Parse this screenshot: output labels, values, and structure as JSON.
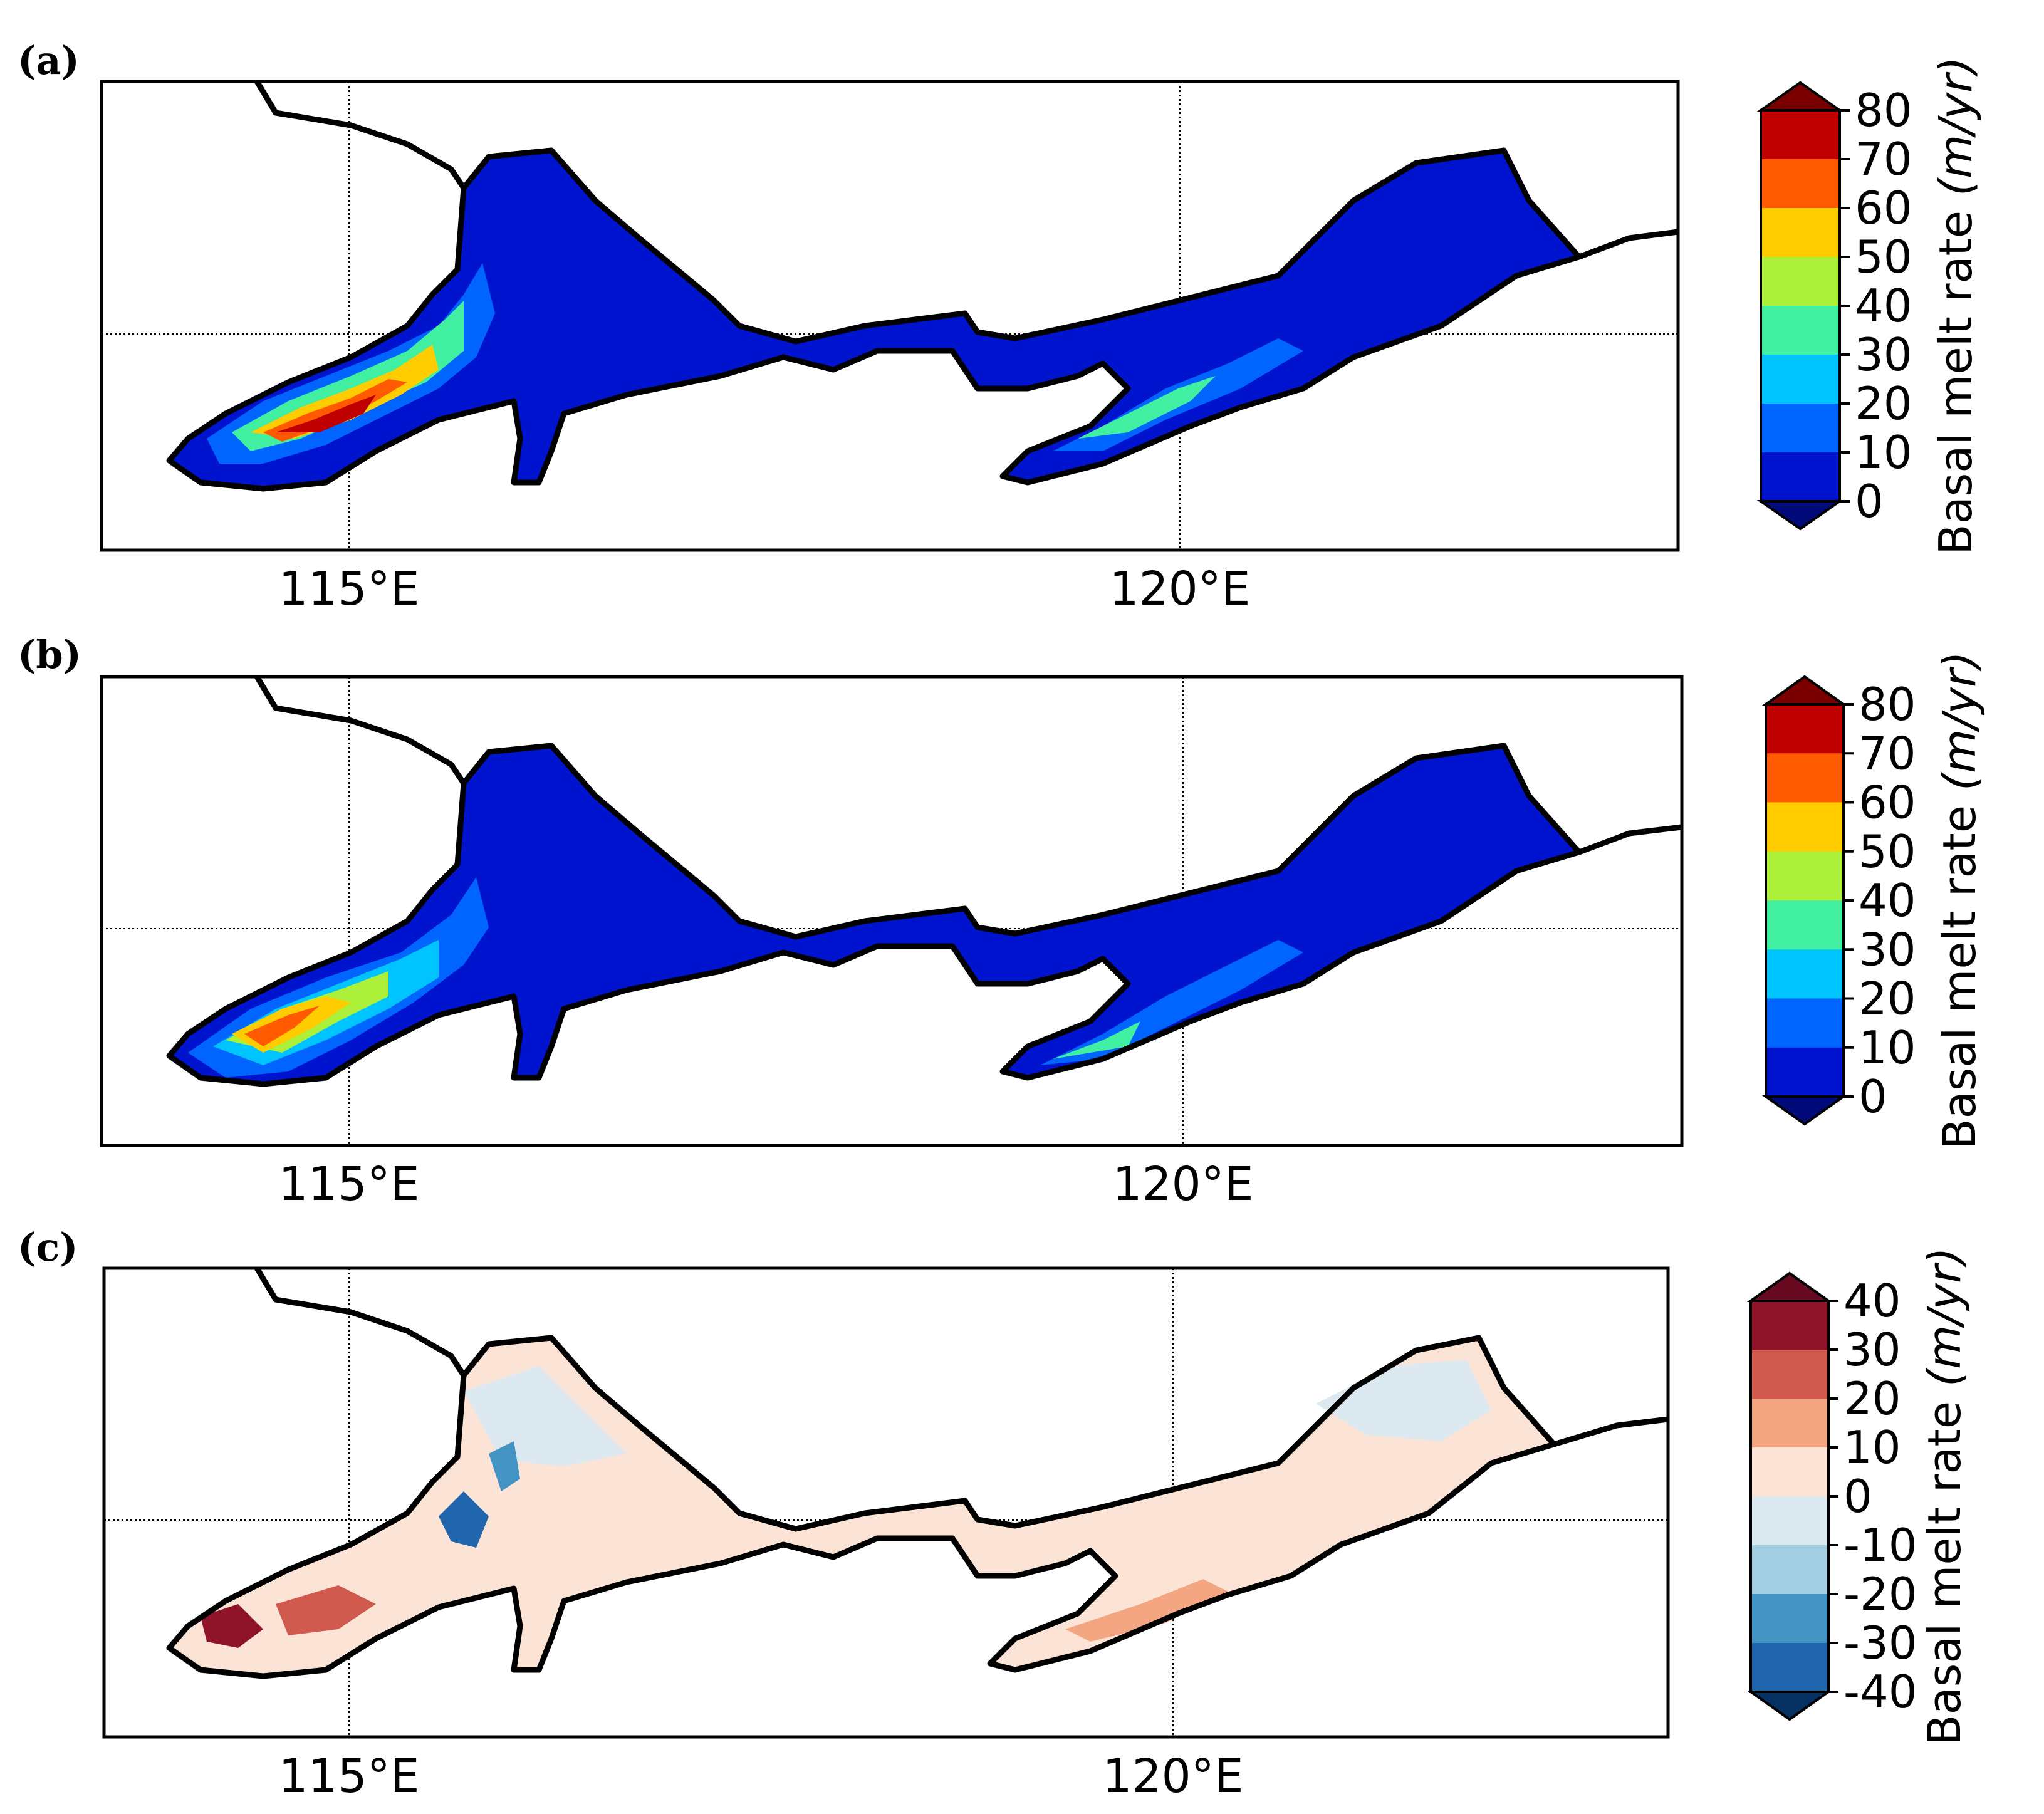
{
  "panels": [
    {
      "id": "a",
      "label": "(a)",
      "lon_ticks": [
        "115°E",
        "120°E"
      ],
      "colorbar": {
        "label": "Basal melt rate (m/yr)",
        "label_plain": "Basal melt rate",
        "label_unit": "(m/yr)",
        "ticks": [
          "80",
          "70",
          "60",
          "50",
          "40",
          "30",
          "20",
          "10",
          "0"
        ],
        "colors": [
          "#7a0000",
          "#c00000",
          "#ff5a00",
          "#ffcc00",
          "#adf03a",
          "#40f0a0",
          "#00c4ff",
          "#0064ff",
          "#0014d0",
          "#000a78"
        ],
        "extend": "both"
      }
    },
    {
      "id": "b",
      "label": "(b)",
      "lon_ticks": [
        "115°E",
        "120°E"
      ],
      "colorbar": {
        "label": "Basal melt rate (m/yr)",
        "label_plain": "Basal melt rate",
        "label_unit": "(m/yr)",
        "ticks": [
          "80",
          "70",
          "60",
          "50",
          "40",
          "30",
          "20",
          "10",
          "0"
        ],
        "colors": [
          "#7a0000",
          "#c00000",
          "#ff5a00",
          "#ffcc00",
          "#adf03a",
          "#40f0a0",
          "#00c4ff",
          "#0064ff",
          "#0014d0",
          "#000a78"
        ],
        "extend": "both"
      }
    },
    {
      "id": "c",
      "label": "(c)",
      "lon_ticks": [
        "115°E",
        "120°E"
      ],
      "colorbar": {
        "label": "Basal melt rate (m/yr)",
        "label_plain": "Basal melt rate",
        "label_unit": "(m/yr)",
        "ticks": [
          "40",
          "30",
          "20",
          "10",
          "0",
          "-10",
          "-20",
          "-30",
          "-40"
        ],
        "colors": [
          "#670a1f",
          "#8e1228",
          "#d05a4d",
          "#f4a582",
          "#fbe4d6",
          "#dde9f1",
          "#a3cde3",
          "#4393c3",
          "#2166ac",
          "#053061"
        ],
        "extend": "both"
      }
    }
  ]
}
